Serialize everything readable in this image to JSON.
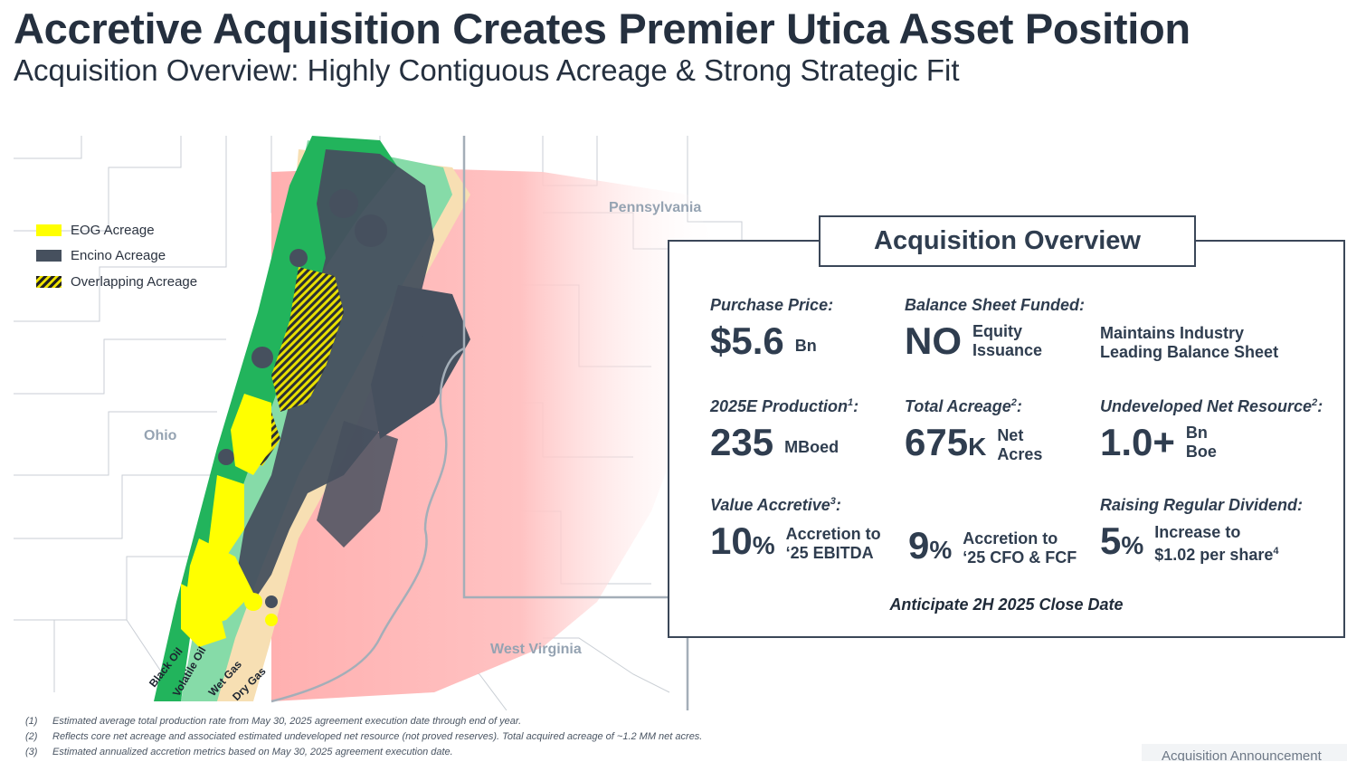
{
  "header": {
    "title": "Accretive Acquisition Creates Premier Utica Asset Position",
    "subtitle": "Acquisition Overview: Highly Contiguous Acreage & Strong Strategic Fit"
  },
  "map": {
    "legend": [
      {
        "label": "EOG Acreage",
        "color": "#ffff00"
      },
      {
        "label": "Encino Acreage",
        "color": "#46505e"
      },
      {
        "label": "Overlapping Acreage",
        "color": "#f0e400"
      }
    ],
    "state_labels": {
      "ohio": "Ohio",
      "pennsylvania": "Pennsylvania",
      "west_virginia": "West Virginia"
    },
    "zone_labels": [
      "Black Oil",
      "Volatile Oil",
      "Wet Gas",
      "Dry Gas"
    ],
    "zone_colors": {
      "black_oil": "#22b45c",
      "volatile_oil": "#86dba8",
      "wet_gas": "#f7dfb3",
      "dry_gas": "#ffb3b3"
    }
  },
  "panel": {
    "heading": "Acquisition Overview",
    "purchase_price": {
      "label": "Purchase Price:",
      "value": "$5.6",
      "unit": "Bn"
    },
    "balance_sheet": {
      "label": "Balance Sheet Funded:",
      "value": "NO",
      "unit_line1": "Equity",
      "unit_line2": "Issuance",
      "note_line1": "Maintains Industry",
      "note_line2": "Leading Balance Sheet"
    },
    "production": {
      "label": "2025E Production",
      "footnote": "1",
      "value": "235",
      "unit": "MBoed"
    },
    "acreage": {
      "label": "Total Acreage",
      "footnote": "2",
      "value": "675",
      "suffix": "K",
      "unit_line1": "Net",
      "unit_line2": "Acres"
    },
    "resource": {
      "label": "Undeveloped Net Resource",
      "footnote": "2",
      "value": "1.0+",
      "unit_line1": "Bn",
      "unit_line2": "Boe"
    },
    "accretive": {
      "label": "Value Accretive",
      "footnote": "3",
      "ebitda": {
        "value": "10",
        "pct": "%",
        "line1": "Accretion to",
        "line2": "‘25 EBITDA"
      },
      "cfo": {
        "value": "9",
        "pct": "%",
        "line1": "Accretion to",
        "line2": "‘25 CFO & FCF"
      }
    },
    "dividend": {
      "label": "Raising Regular Dividend:",
      "value": "5",
      "pct": "%",
      "line1": "Increase to",
      "line2": "$1.02 per share",
      "footnote": "4"
    },
    "close_date": "Anticipate 2H 2025 Close Date"
  },
  "footnotes": [
    {
      "num": "(1)",
      "text": "Estimated average total production rate from May 30, 2025 agreement execution date through end of year."
    },
    {
      "num": "(2)",
      "text": "Reflects core net acreage and associated estimated undeveloped net resource (not proved reserves). Total acquired acreage of ~1.2 MM net acres."
    },
    {
      "num": "(3)",
      "text": "Estimated annualized accretion metrics based on May 30, 2025 agreement execution date."
    }
  ],
  "footer": "Acquisition Announcement"
}
